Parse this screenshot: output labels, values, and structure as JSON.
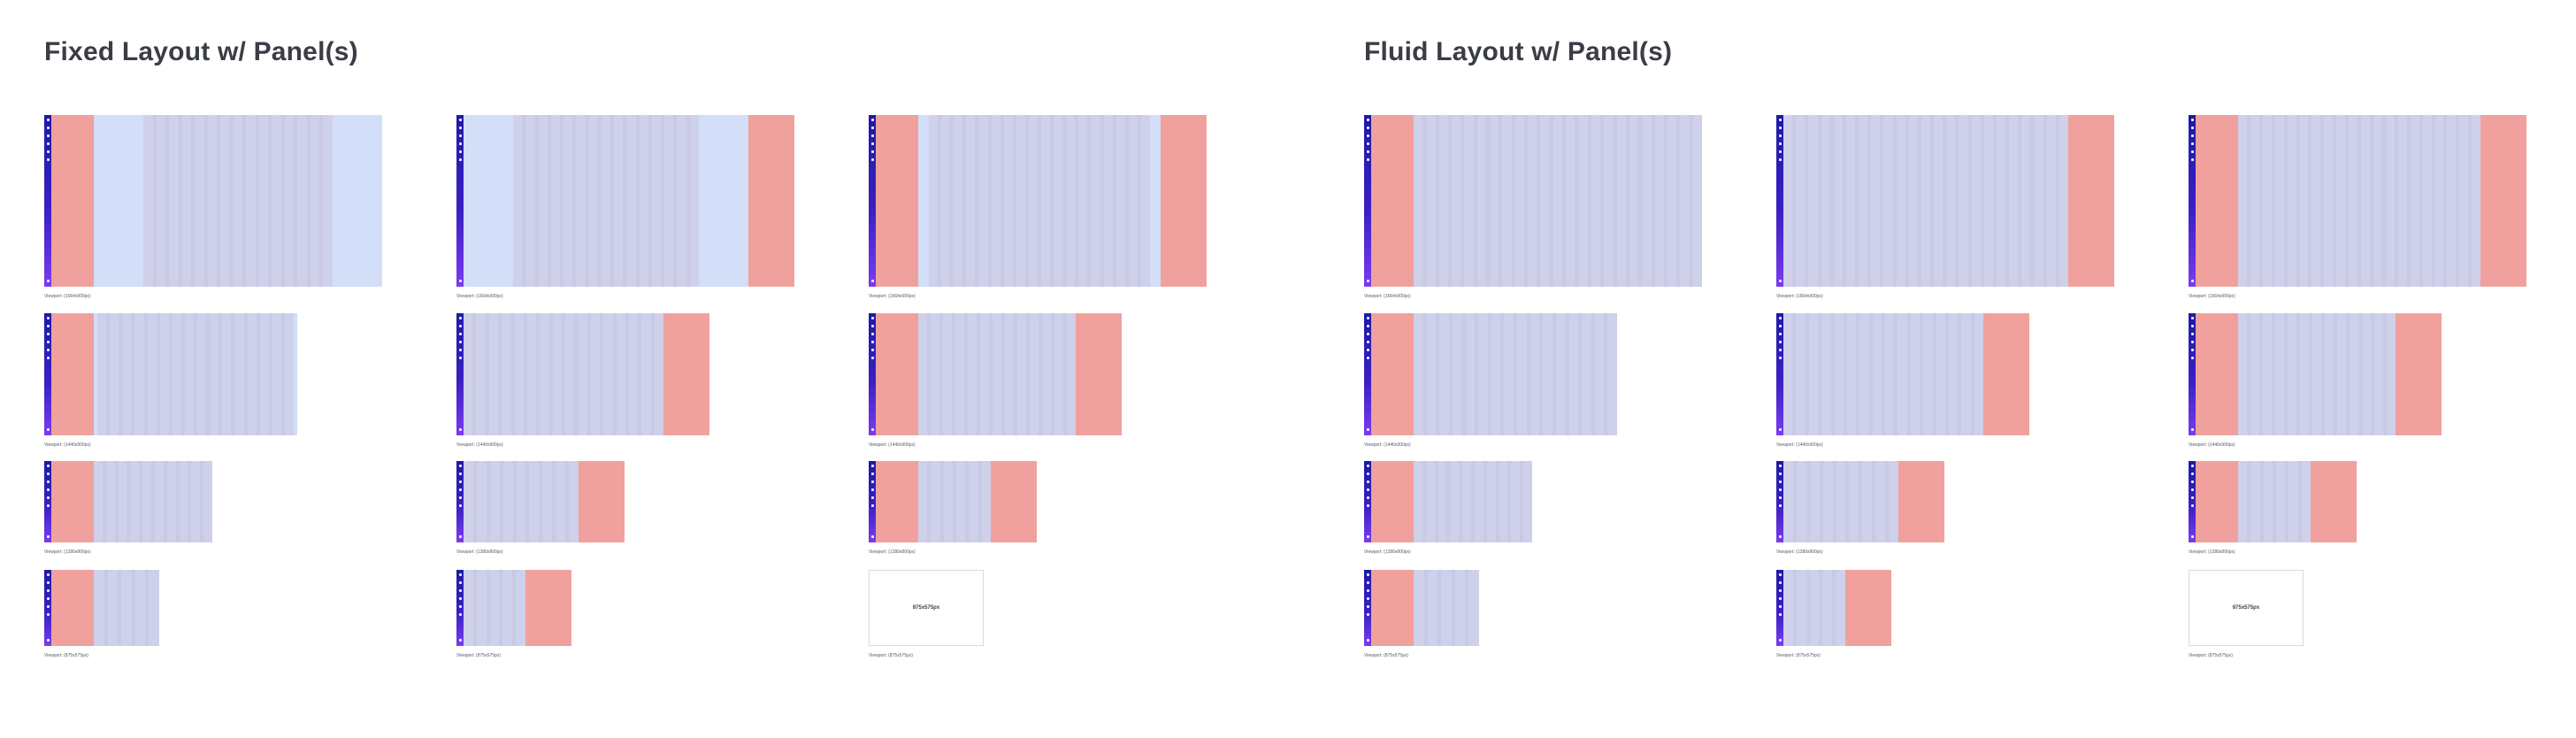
{
  "sections": [
    {
      "title": "Fixed Layout w/ Panel(s)"
    },
    {
      "title": "Fluid Layout w/ Panel(s)"
    }
  ],
  "captions": {
    "row1": "Viewport: (1664x900px)",
    "row2": "Viewport: (1440x900px)",
    "row3": "Viewport: (1280x800px)",
    "row4": "Viewport: (875x575px)"
  },
  "placeholder_label": "875x575px",
  "colors": {
    "nav": "#2a1fb0",
    "side_panel": "#f0a19d",
    "margin": "#d3def8",
    "grid": "#cfd0ea",
    "title_text": "#3a3d45"
  }
}
